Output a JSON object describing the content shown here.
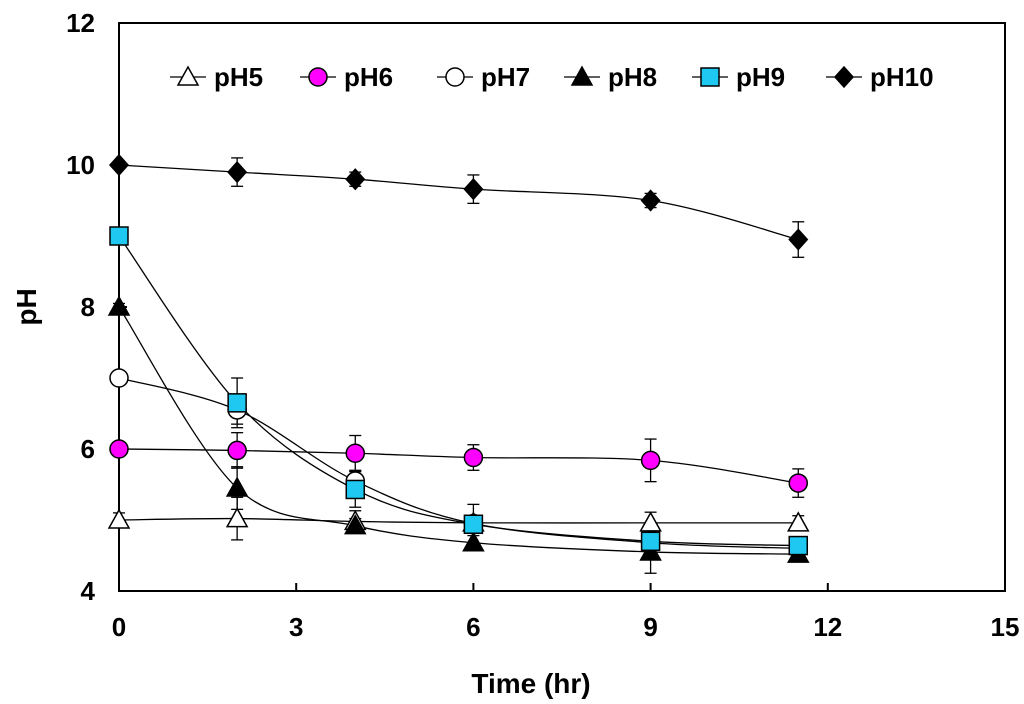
{
  "chart_data": {
    "type": "line",
    "title": "",
    "xlabel": "Time (hr)",
    "ylabel": "pH",
    "xlim": [
      0,
      15
    ],
    "ylim": [
      4,
      12
    ],
    "xticks": [
      "0",
      "3",
      "6",
      "9",
      "12",
      "15"
    ],
    "yticks": [
      "4",
      "6",
      "8",
      "10",
      "12"
    ],
    "grid": false,
    "legend_position": "top",
    "x": [
      0,
      2,
      4,
      6,
      9,
      11.5
    ],
    "series": [
      {
        "name": "pH5",
        "marker": "triangle-open",
        "color": "#ffffff",
        "values": [
          5.0,
          5.02,
          4.98,
          4.96,
          4.96,
          4.96
        ],
        "errors": [
          0.1,
          0.3,
          0.15,
          0.1,
          0.15,
          0.1
        ]
      },
      {
        "name": "pH6",
        "marker": "circle-filled",
        "color": "#ff00ff",
        "values": [
          6.0,
          5.98,
          5.94,
          5.88,
          5.84,
          5.52
        ],
        "errors": [
          0.05,
          0.25,
          0.25,
          0.18,
          0.3,
          0.2
        ]
      },
      {
        "name": "pH7",
        "marker": "circle-open",
        "color": "#ffffff",
        "values": [
          7.0,
          6.55,
          5.55,
          4.95,
          4.68,
          4.6
        ],
        "errors": [
          0.05,
          0.2,
          0.15,
          0.1,
          0.15,
          0.1
        ]
      },
      {
        "name": "pH8",
        "marker": "triangle-filled",
        "color": "#000000",
        "values": [
          8.0,
          5.45,
          4.92,
          4.68,
          4.55,
          4.52
        ],
        "errors": [
          0.05,
          0.3,
          0.1,
          0.1,
          0.3,
          0.08
        ]
      },
      {
        "name": "pH9",
        "marker": "square-filled",
        "color": "#1ec8f0",
        "values": [
          9.0,
          6.65,
          5.43,
          4.94,
          4.7,
          4.64
        ],
        "errors": [
          0.05,
          0.35,
          0.25,
          0.28,
          0.1,
          0.1
        ]
      },
      {
        "name": "pH10",
        "marker": "diamond-filled",
        "color": "#000000",
        "values": [
          10.0,
          9.9,
          9.8,
          9.66,
          9.5,
          8.95
        ],
        "errors": [
          0.05,
          0.2,
          0.1,
          0.2,
          0.1,
          0.25
        ]
      }
    ]
  }
}
